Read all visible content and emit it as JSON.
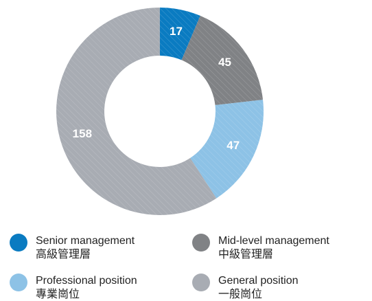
{
  "chart_data": {
    "type": "donut",
    "categories": [
      "Senior management",
      "Mid-level management",
      "Professional position",
      "General position"
    ],
    "categories_zh": [
      "高級管理層",
      "中級管理層",
      "專業崗位",
      "一般崗位"
    ],
    "values": [
      17,
      45,
      47,
      158
    ],
    "colors": [
      "#0a7bc1",
      "#808285",
      "#8dc2e6",
      "#a8acb3"
    ]
  }
}
